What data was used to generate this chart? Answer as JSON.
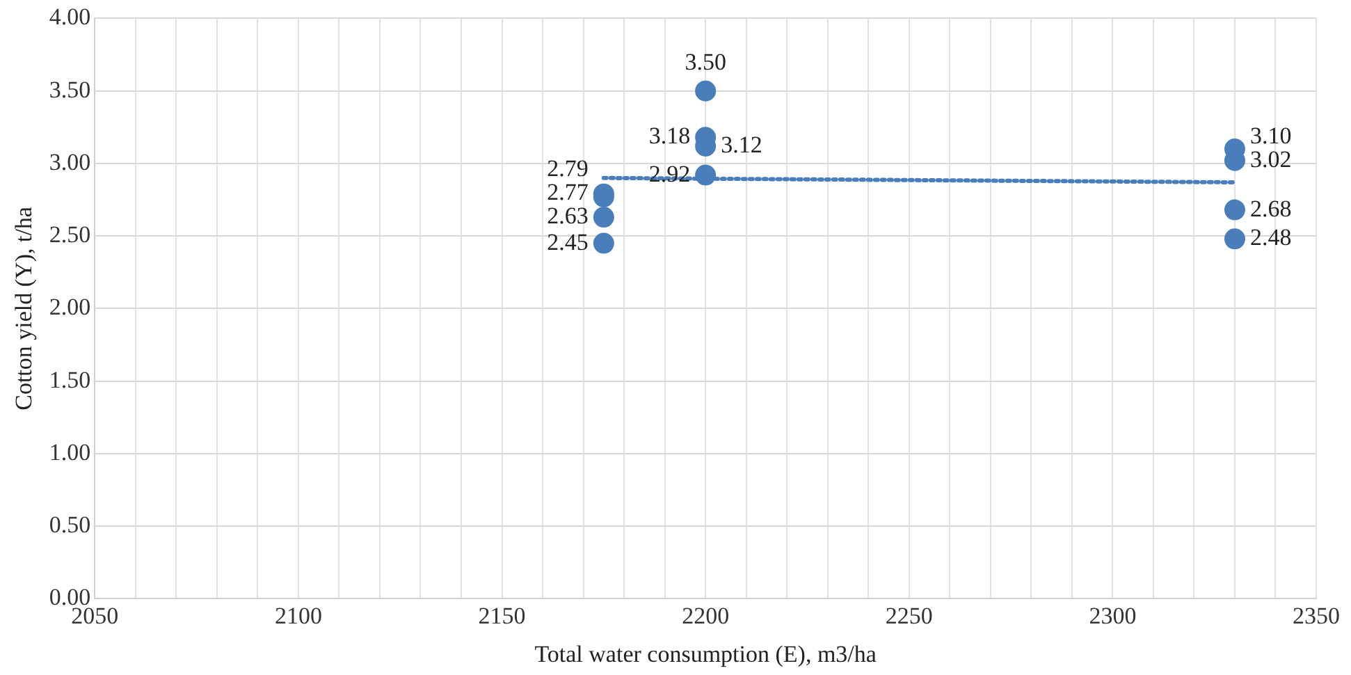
{
  "chart_data": {
    "type": "scatter",
    "xlabel": "Total water consumption (E), m3/ha",
    "ylabel": "Cotton yield (Y), t/ha",
    "series": [
      {
        "color": "#4a7ebb",
        "x": [
          2175,
          2175,
          2175,
          2175,
          2200,
          2200,
          2200,
          2200,
          2330,
          2330,
          2330,
          2330
        ],
        "values": [
          2.79,
          2.77,
          2.63,
          2.45,
          3.5,
          3.18,
          3.12,
          2.92,
          3.1,
          3.02,
          2.68,
          2.48
        ],
        "value_labels": [
          "2.79",
          "2.77",
          "2.63",
          "2.45",
          "3.50",
          "3.18",
          "3.12",
          "2.92",
          "3.10",
          "3.02",
          "2.68",
          "2.48"
        ]
      },
      {
        "type": "line",
        "color": "#4a7ebb",
        "line_style": "dotted",
        "marker": "none",
        "x": [
          2175,
          2330
        ],
        "values": [
          2.9,
          2.87
        ]
      }
    ],
    "xlim": [
      2050,
      2350
    ],
    "xticks": [
      2050,
      {
        "value": 2060,
        "label": null
      },
      {
        "value": 2070,
        "label": null
      },
      {
        "value": 2080,
        "label": null
      },
      {
        "value": 2090,
        "label": null
      },
      2100,
      {
        "value": 2110,
        "label": null
      },
      {
        "value": 2120,
        "label": null
      },
      {
        "value": 2130,
        "label": null
      },
      {
        "value": 2140,
        "label": null
      },
      2150,
      {
        "value": 2160,
        "label": null
      },
      {
        "value": 2170,
        "label": null
      },
      {
        "value": 2180,
        "label": null
      },
      {
        "value": 2190,
        "label": null
      },
      2200,
      {
        "value": 2210,
        "label": null
      },
      {
        "value": 2220,
        "label": null
      },
      {
        "value": 2230,
        "label": null
      },
      {
        "value": 2240,
        "label": null
      },
      2250,
      {
        "value": 2260,
        "label": null
      },
      {
        "value": 2270,
        "label": null
      },
      {
        "value": 2280,
        "label": null
      },
      {
        "value": 2290,
        "label": null
      },
      2300,
      {
        "value": 2310,
        "label": null
      },
      {
        "value": 2320,
        "label": null
      },
      {
        "value": 2330,
        "label": null
      },
      {
        "value": 2340,
        "label": null
      },
      2350
    ],
    "ylim": [
      0,
      4
    ],
    "yticks": [
      {
        "value": 0,
        "label": "0.00"
      },
      {
        "value": 0.5,
        "label": "0.50"
      },
      {
        "value": 1,
        "label": "1.00"
      },
      {
        "value": 1.5,
        "label": "1.50"
      },
      {
        "value": 2,
        "label": "2.00"
      },
      {
        "value": 2.5,
        "label": "2.50"
      },
      {
        "value": 3,
        "label": "3.00"
      },
      {
        "value": 3.5,
        "label": "3.50"
      },
      {
        "value": 4,
        "label": "4.00"
      }
    ],
    "grid": true,
    "legend": false,
    "marker": "circle"
  }
}
